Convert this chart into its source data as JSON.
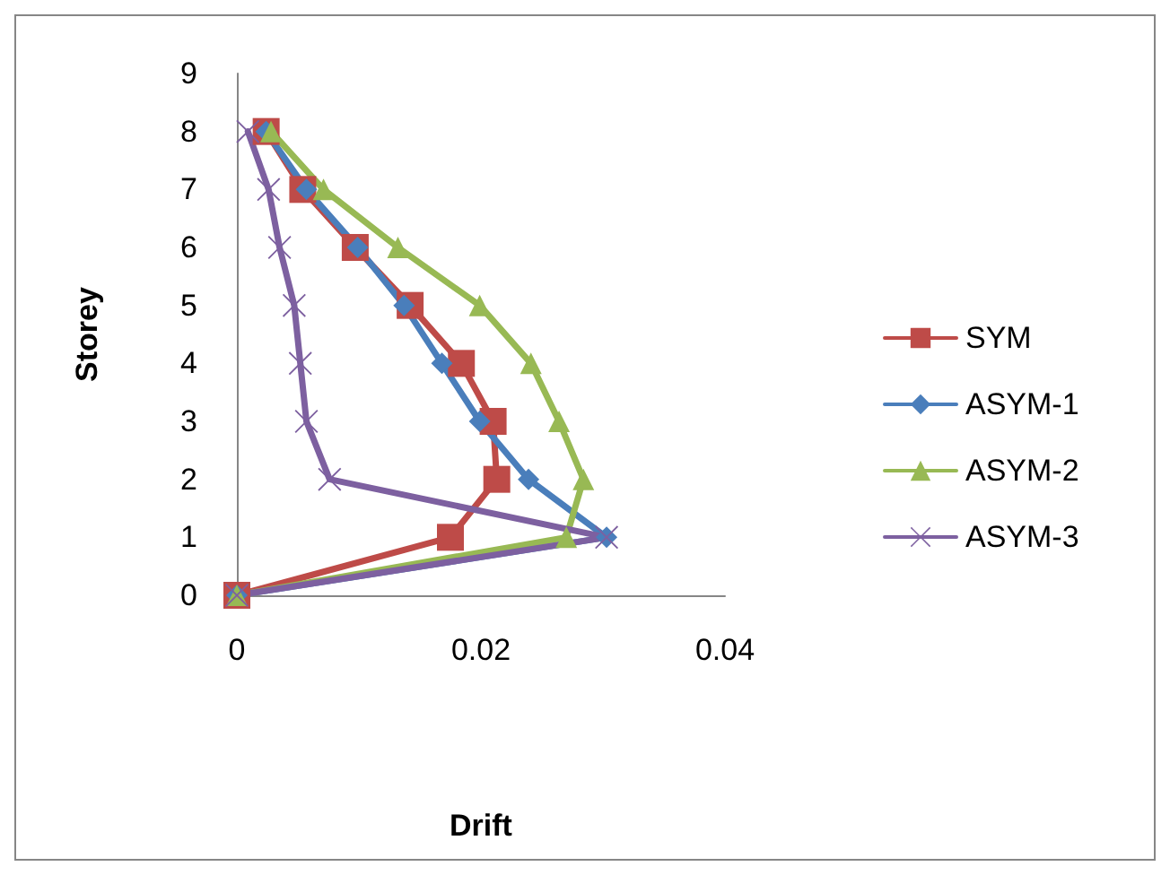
{
  "chart_data": {
    "type": "line",
    "xlabel": "Drift",
    "ylabel": "Storey",
    "xlim": [
      0,
      0.04
    ],
    "xticks": [
      0,
      0.02,
      0.04
    ],
    "ylim": [
      0,
      9
    ],
    "yticks": [
      0,
      1,
      2,
      3,
      4,
      5,
      6,
      7,
      8,
      9
    ],
    "grid": false,
    "legend": "right",
    "series": [
      {
        "name": "SYM",
        "color": "#be4b48",
        "marker": "square",
        "x": [
          0,
          0.0175,
          0.0213,
          0.021,
          0.0184,
          0.0142,
          0.0097,
          0.0054,
          0.0024
        ],
        "values": [
          0,
          1,
          2,
          3,
          4,
          5,
          6,
          7,
          8
        ]
      },
      {
        "name": "ASYM-1",
        "color": "#4a7ebb",
        "marker": "diamond",
        "x": [
          0,
          0.0303,
          0.0239,
          0.0199,
          0.0168,
          0.0137,
          0.0099,
          0.0057,
          0.0024
        ],
        "values": [
          0,
          1,
          2,
          3,
          4,
          5,
          6,
          7,
          8
        ]
      },
      {
        "name": "ASYM-2",
        "color": "#98b954",
        "marker": "triangle",
        "x": [
          0,
          0.027,
          0.0284,
          0.0264,
          0.0241,
          0.0199,
          0.0132,
          0.0071,
          0.0028
        ],
        "values": [
          0,
          1,
          2,
          3,
          4,
          5,
          6,
          7,
          8
        ]
      },
      {
        "name": "ASYM-3",
        "color": "#7d60a0",
        "marker": "cross",
        "x": [
          0,
          0.0303,
          0.0076,
          0.0057,
          0.0052,
          0.0047,
          0.0035,
          0.0026,
          0.0009
        ],
        "values": [
          0,
          1,
          2,
          3,
          4,
          5,
          6,
          7,
          8
        ]
      }
    ]
  }
}
